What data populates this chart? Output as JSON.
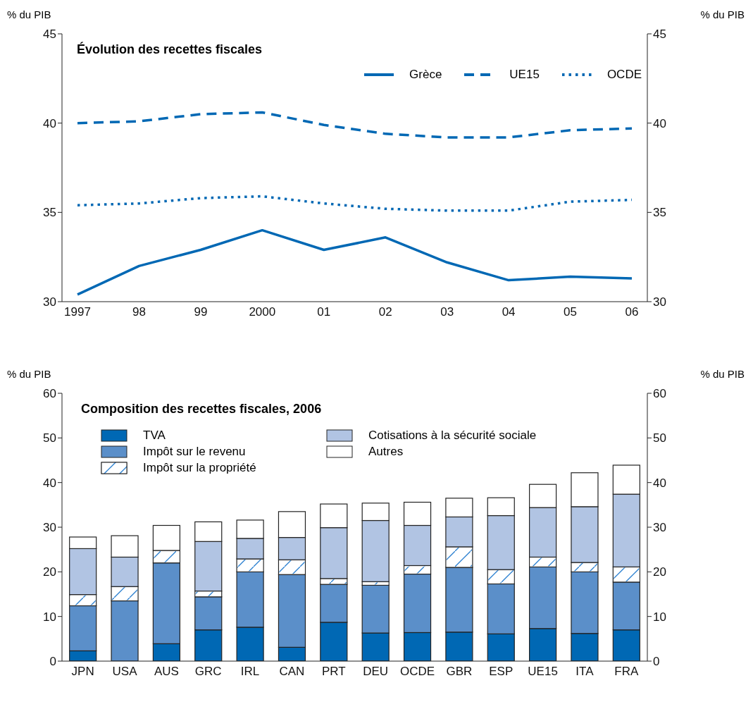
{
  "chart_data": [
    {
      "type": "line",
      "title": "Évolution des recettes fiscales",
      "ylabel": "% du PIB",
      "y2label": "% du PIB",
      "categories": [
        "1997",
        "98",
        "99",
        "2000",
        "01",
        "02",
        "03",
        "04",
        "05",
        "06"
      ],
      "series": [
        {
          "name": "Grèce",
          "color": "#0068b4",
          "line_style": "solid",
          "values": [
            30.4,
            32.0,
            32.9,
            34.0,
            32.9,
            33.6,
            32.2,
            31.2,
            31.4,
            31.3
          ]
        },
        {
          "name": "UE15",
          "color": "#0068b4",
          "line_style": "dashed",
          "values": [
            40.0,
            40.1,
            40.5,
            40.6,
            39.9,
            39.4,
            39.2,
            39.2,
            39.6,
            39.7
          ]
        },
        {
          "name": "OCDE",
          "color": "#0068b4",
          "line_style": "dotted",
          "values": [
            35.4,
            35.5,
            35.8,
            35.9,
            35.5,
            35.2,
            35.1,
            35.1,
            35.6,
            35.7
          ]
        }
      ],
      "ylim": [
        30,
        45
      ],
      "yticks": [
        30,
        35,
        40,
        45
      ],
      "y2lim": [
        30,
        45
      ],
      "y2ticks": [
        30,
        35,
        40,
        45
      ],
      "legend": "top right",
      "marker": "none"
    },
    {
      "type": "bar",
      "stacked": true,
      "title": "Composition des recettes fiscales, 2006",
      "ylabel": "% du PIB",
      "y2label": "% du PIB",
      "categories": [
        "JPN",
        "USA",
        "AUS",
        "GRC",
        "IRL",
        "CAN",
        "PRT",
        "DEU",
        "OCDE",
        "GBR",
        "ESP",
        "UE15",
        "ITA",
        "FRA"
      ],
      "series": [
        {
          "name": "TVA",
          "color": "#0068b4",
          "values": [
            2.3,
            0,
            3.9,
            7.0,
            7.6,
            3.1,
            8.7,
            6.3,
            6.4,
            6.5,
            6.1,
            7.3,
            6.2,
            7.0
          ]
        },
        {
          "name": "Impôt sur le revenu",
          "color": "#5b8fc9",
          "values": [
            10.1,
            13.5,
            18.1,
            7.4,
            12.4,
            16.3,
            8.5,
            10.7,
            13.1,
            14.5,
            11.2,
            13.8,
            13.8,
            10.7
          ]
        },
        {
          "name": "Impôt sur la propriété",
          "color": "#ffffff",
          "values": [
            2.5,
            3.2,
            2.8,
            1.3,
            2.9,
            3.3,
            1.3,
            0.8,
            1.9,
            4.6,
            3.2,
            2.2,
            2.1,
            3.4
          ]
        },
        {
          "name": "Cotisations à la sécurité sociale",
          "color": "#b1c4e3",
          "values": [
            10.3,
            6.6,
            0,
            11.1,
            4.6,
            5.0,
            11.4,
            13.7,
            9.0,
            6.7,
            12.1,
            11.1,
            12.5,
            16.3
          ]
        },
        {
          "name": "Autres",
          "color": "#ffffff",
          "values": [
            2.6,
            4.8,
            5.6,
            4.4,
            4.1,
            5.8,
            5.3,
            3.9,
            5.2,
            4.2,
            4.0,
            5.2,
            7.6,
            6.5
          ]
        }
      ],
      "ylim": [
        0,
        60
      ],
      "yticks": [
        0,
        10,
        20,
        30,
        40,
        50,
        60
      ],
      "y2lim": [
        0,
        60
      ],
      "y2ticks": [
        0,
        10,
        20,
        30,
        40,
        50,
        60
      ],
      "legend": "top left"
    }
  ]
}
